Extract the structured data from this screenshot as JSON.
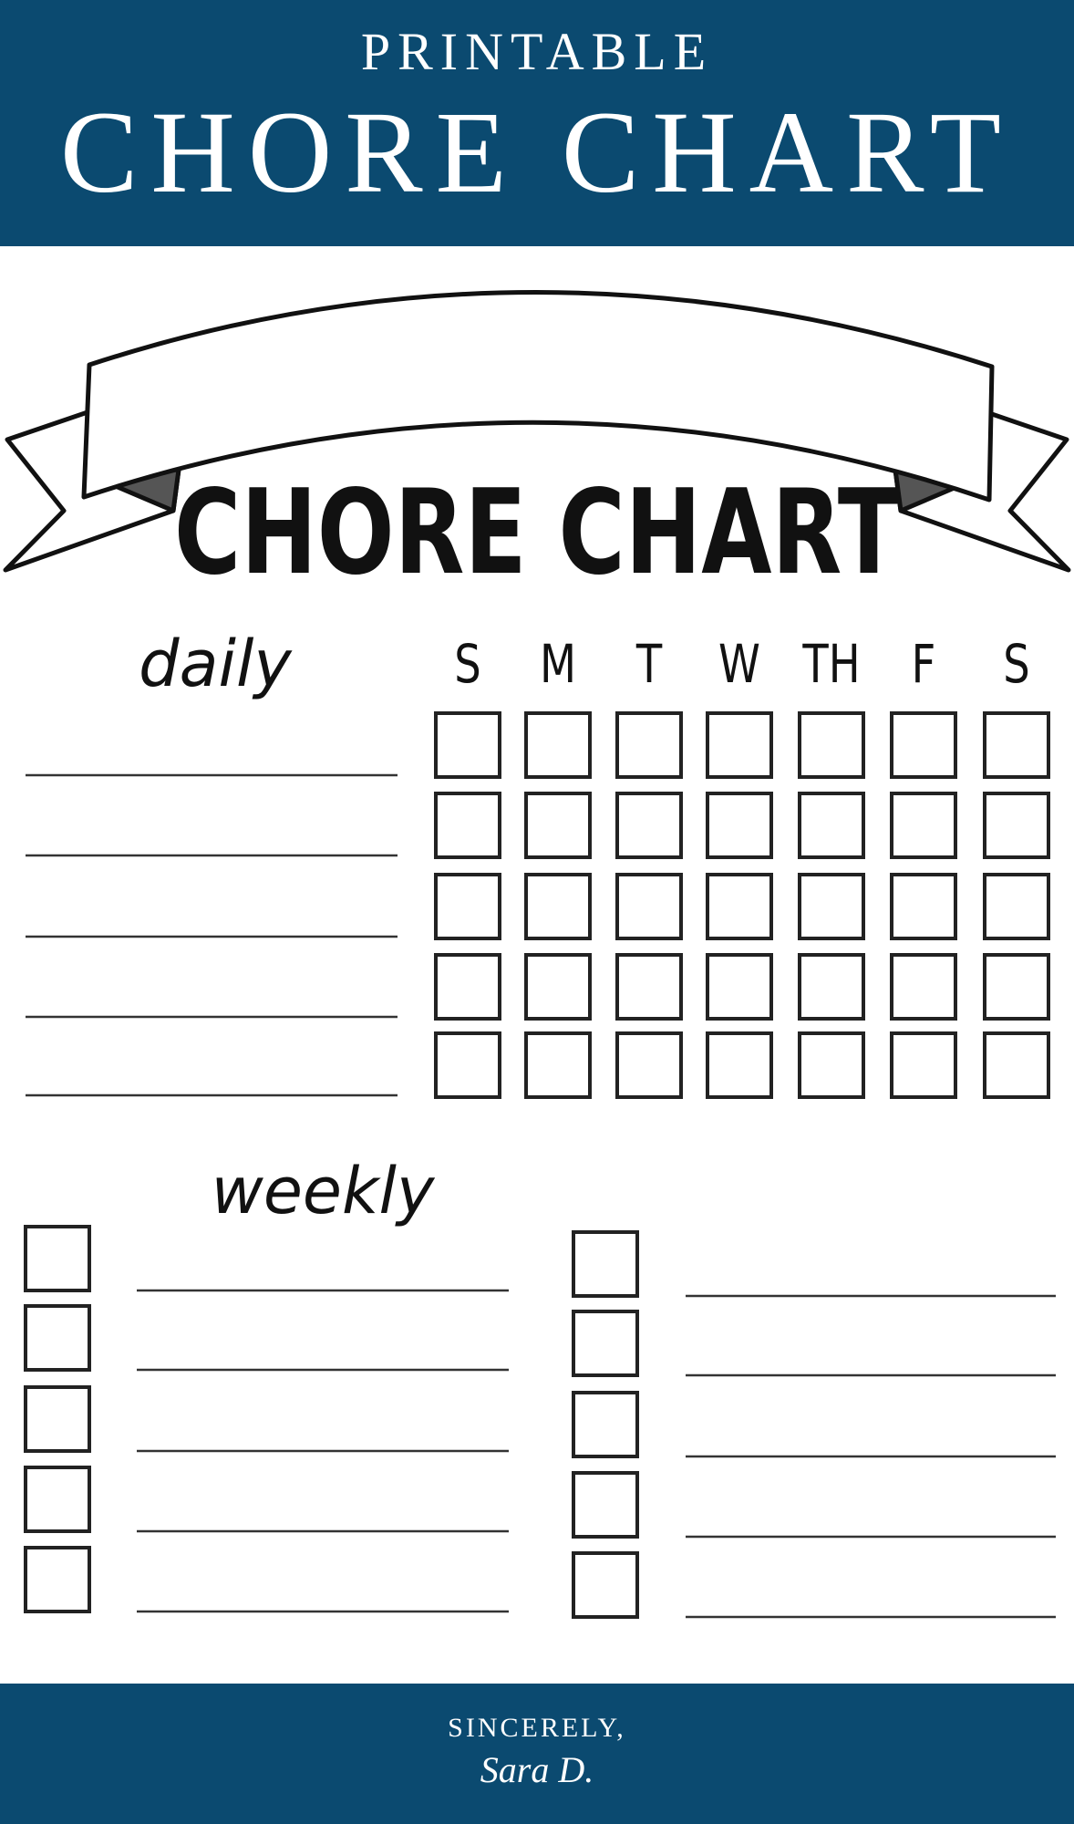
{
  "header": {
    "kicker": "PRINTABLE",
    "title": "CHORE CHART"
  },
  "banner": {
    "title": "CHORE CHART"
  },
  "daily": {
    "label": "daily",
    "days": [
      "S",
      "M",
      "T",
      "W",
      "TH",
      "F",
      "S"
    ]
  },
  "weekly": {
    "label": "weekly"
  },
  "footer": {
    "line1": "SINCERELY,",
    "signature": "Sara D."
  }
}
